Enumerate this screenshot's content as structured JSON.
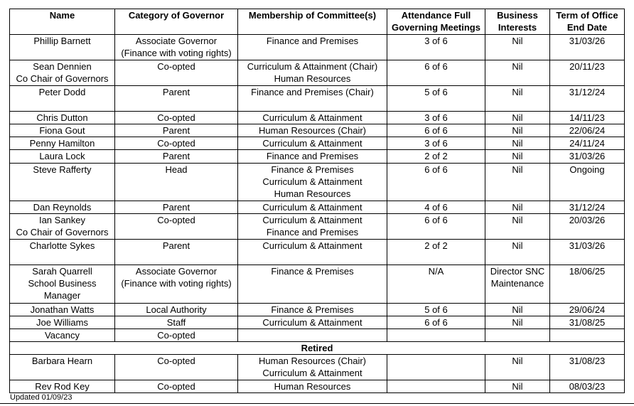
{
  "table": {
    "column_keys": [
      "name",
      "category",
      "membership",
      "attendance",
      "business-interests",
      "term"
    ],
    "headers": [
      "Name",
      "Category of Governor",
      "Membership of Committee(s)",
      "Attendance Full\nGoverning Meetings",
      "Business\nInterests",
      "Term of Office\nEnd Date"
    ],
    "rows": [
      {
        "cells": [
          "Phillip Barnett",
          "Associate Governor\n(Finance with voting rights)",
          "Finance and Premises",
          "3 of 6",
          "Nil",
          "31/03/26"
        ]
      },
      {
        "cells": [
          "Sean Dennien\nCo Chair of Governors",
          "Co-opted",
          "Curriculum & Attainment (Chair)\nHuman Resources",
          "6 of 6",
          "Nil",
          "20/11/23"
        ]
      },
      {
        "cells": [
          "Peter Dodd",
          "Parent",
          "Finance and Premises (Chair)",
          "5 of 6",
          "Nil",
          "31/12/24"
        ]
      },
      {
        "cells": [
          "Chris Dutton",
          "Co-opted",
          "Curriculum & Attainment",
          "3 of 6",
          "Nil",
          "14/11/23"
        ]
      },
      {
        "cells": [
          "Fiona Gout",
          "Parent",
          "Human Resources (Chair)",
          "6 of 6",
          "Nil",
          "22/06/24"
        ]
      },
      {
        "cells": [
          "Penny Hamilton",
          "Co-opted",
          "Curriculum & Attainment",
          "3 of 6",
          "Nil",
          "24/11/24"
        ]
      },
      {
        "cells": [
          "Laura Lock",
          "Parent",
          "Finance and Premises",
          "2 of 2",
          "Nil",
          "31/03/26"
        ]
      },
      {
        "cells": [
          "Steve Rafferty",
          "Head",
          "Finance & Premises\nCurriculum & Attainment\nHuman Resources",
          "6 of 6",
          "Nil",
          "Ongoing"
        ]
      },
      {
        "cells": [
          "Dan Reynolds",
          "Parent",
          "Curriculum & Attainment",
          "4 of 6",
          "Nil",
          "31/12/24"
        ]
      },
      {
        "cells": [
          "Ian Sankey\nCo Chair of Governors",
          "Co-opted",
          "Curriculum & Attainment\nFinance and Premises",
          "6 of 6",
          "Nil",
          "20/03/26"
        ]
      },
      {
        "cells": [
          "Charlotte Sykes",
          "Parent",
          "Curriculum & Attainment",
          "2 of 2",
          "Nil",
          "31/03/26"
        ]
      },
      {
        "cells": [
          "Sarah Quarrell\nSchool Business\nManager",
          "Associate Governor\n(Finance with voting rights)",
          "Finance & Premises",
          "N/A",
          "Director SNC\nMaintenance",
          "18/06/25"
        ]
      },
      {
        "cells": [
          "Jonathan Watts",
          "Local Authority",
          "Finance & Premises",
          "5 of 6",
          "Nil",
          "29/06/24"
        ]
      },
      {
        "cells": [
          "Joe Williams",
          "Staff",
          "Curriculum & Attainment",
          "6 of 6",
          "Nil",
          "31/08/25"
        ]
      },
      {
        "cells": [
          "Vacancy",
          "Co-opted",
          "",
          "",
          "",
          ""
        ]
      },
      {
        "divider": "Retired"
      },
      {
        "cells": [
          "Barbara Hearn",
          "Co-opted",
          "Human Resources (Chair)\nCurriculum & Attainment",
          "",
          "Nil",
          "31/08/23"
        ]
      },
      {
        "cells": [
          "Rev Rod Key",
          "Co-opted",
          "Human Resources",
          "",
          "Nil",
          "08/03/23"
        ]
      }
    ]
  },
  "footer": {
    "updated": "Updated 01/09/23"
  }
}
